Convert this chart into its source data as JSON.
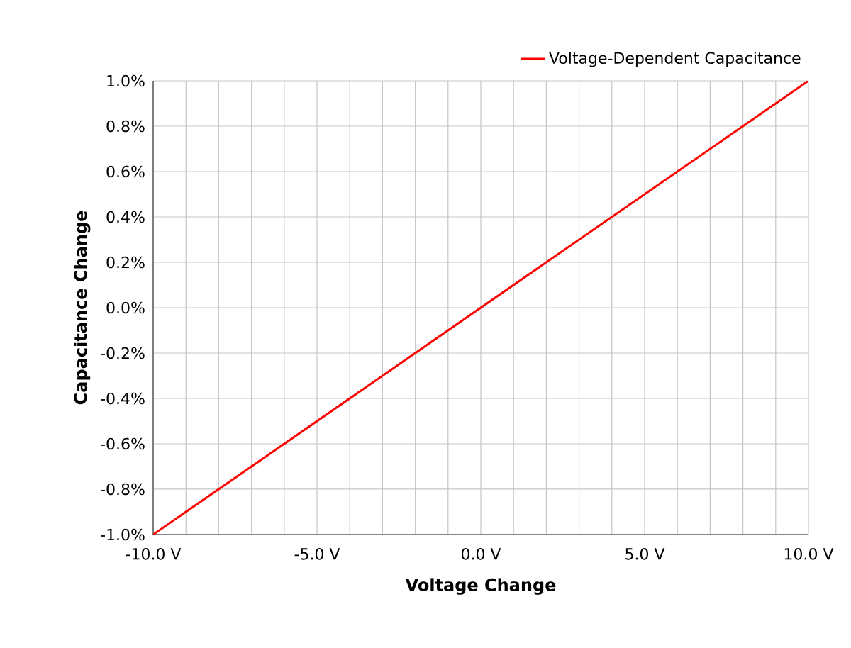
{
  "chart_data": {
    "type": "line",
    "xlabel": "Voltage Change",
    "ylabel": "Capacitance Change",
    "x": [
      -10,
      10
    ],
    "series": [
      {
        "name": "Voltage-Dependent Capacitance",
        "color": "#ff0000",
        "values": [
          -1.0,
          1.0
        ]
      }
    ],
    "xlim": [
      -10,
      10
    ],
    "xticks": [
      {
        "value": -10,
        "label": "-10.0 V"
      },
      {
        "value": -9,
        "label": null
      },
      {
        "value": -8,
        "label": null
      },
      {
        "value": -7,
        "label": null
      },
      {
        "value": -6,
        "label": null
      },
      {
        "value": -5,
        "label": "-5.0 V"
      },
      {
        "value": -4,
        "label": null
      },
      {
        "value": -3,
        "label": null
      },
      {
        "value": -2,
        "label": null
      },
      {
        "value": -1,
        "label": null
      },
      {
        "value": 0,
        "label": "0.0 V"
      },
      {
        "value": 1,
        "label": null
      },
      {
        "value": 2,
        "label": null
      },
      {
        "value": 3,
        "label": null
      },
      {
        "value": 4,
        "label": null
      },
      {
        "value": 5,
        "label": "5.0 V"
      },
      {
        "value": 6,
        "label": null
      },
      {
        "value": 7,
        "label": null
      },
      {
        "value": 8,
        "label": null
      },
      {
        "value": 9,
        "label": null
      },
      {
        "value": 10,
        "label": "10.0 V"
      }
    ],
    "ylim": [
      -1.0,
      1.0
    ],
    "yticks": [
      {
        "value": -1.0,
        "label": "-1.0%"
      },
      {
        "value": -0.8,
        "label": "-0.8%"
      },
      {
        "value": -0.6,
        "label": "-0.6%"
      },
      {
        "value": -0.4,
        "label": "-0.4%"
      },
      {
        "value": -0.2,
        "label": "-0.2%"
      },
      {
        "value": 0.0,
        "label": "0.0%"
      },
      {
        "value": 0.2,
        "label": "0.2%"
      },
      {
        "value": 0.4,
        "label": "0.4%"
      },
      {
        "value": 0.6,
        "label": "0.6%"
      },
      {
        "value": 0.8,
        "label": "0.8%"
      },
      {
        "value": 1.0,
        "label": "1.0%"
      }
    ],
    "grid": true,
    "legend": "top right",
    "marker": "none",
    "line_style": "solid"
  }
}
